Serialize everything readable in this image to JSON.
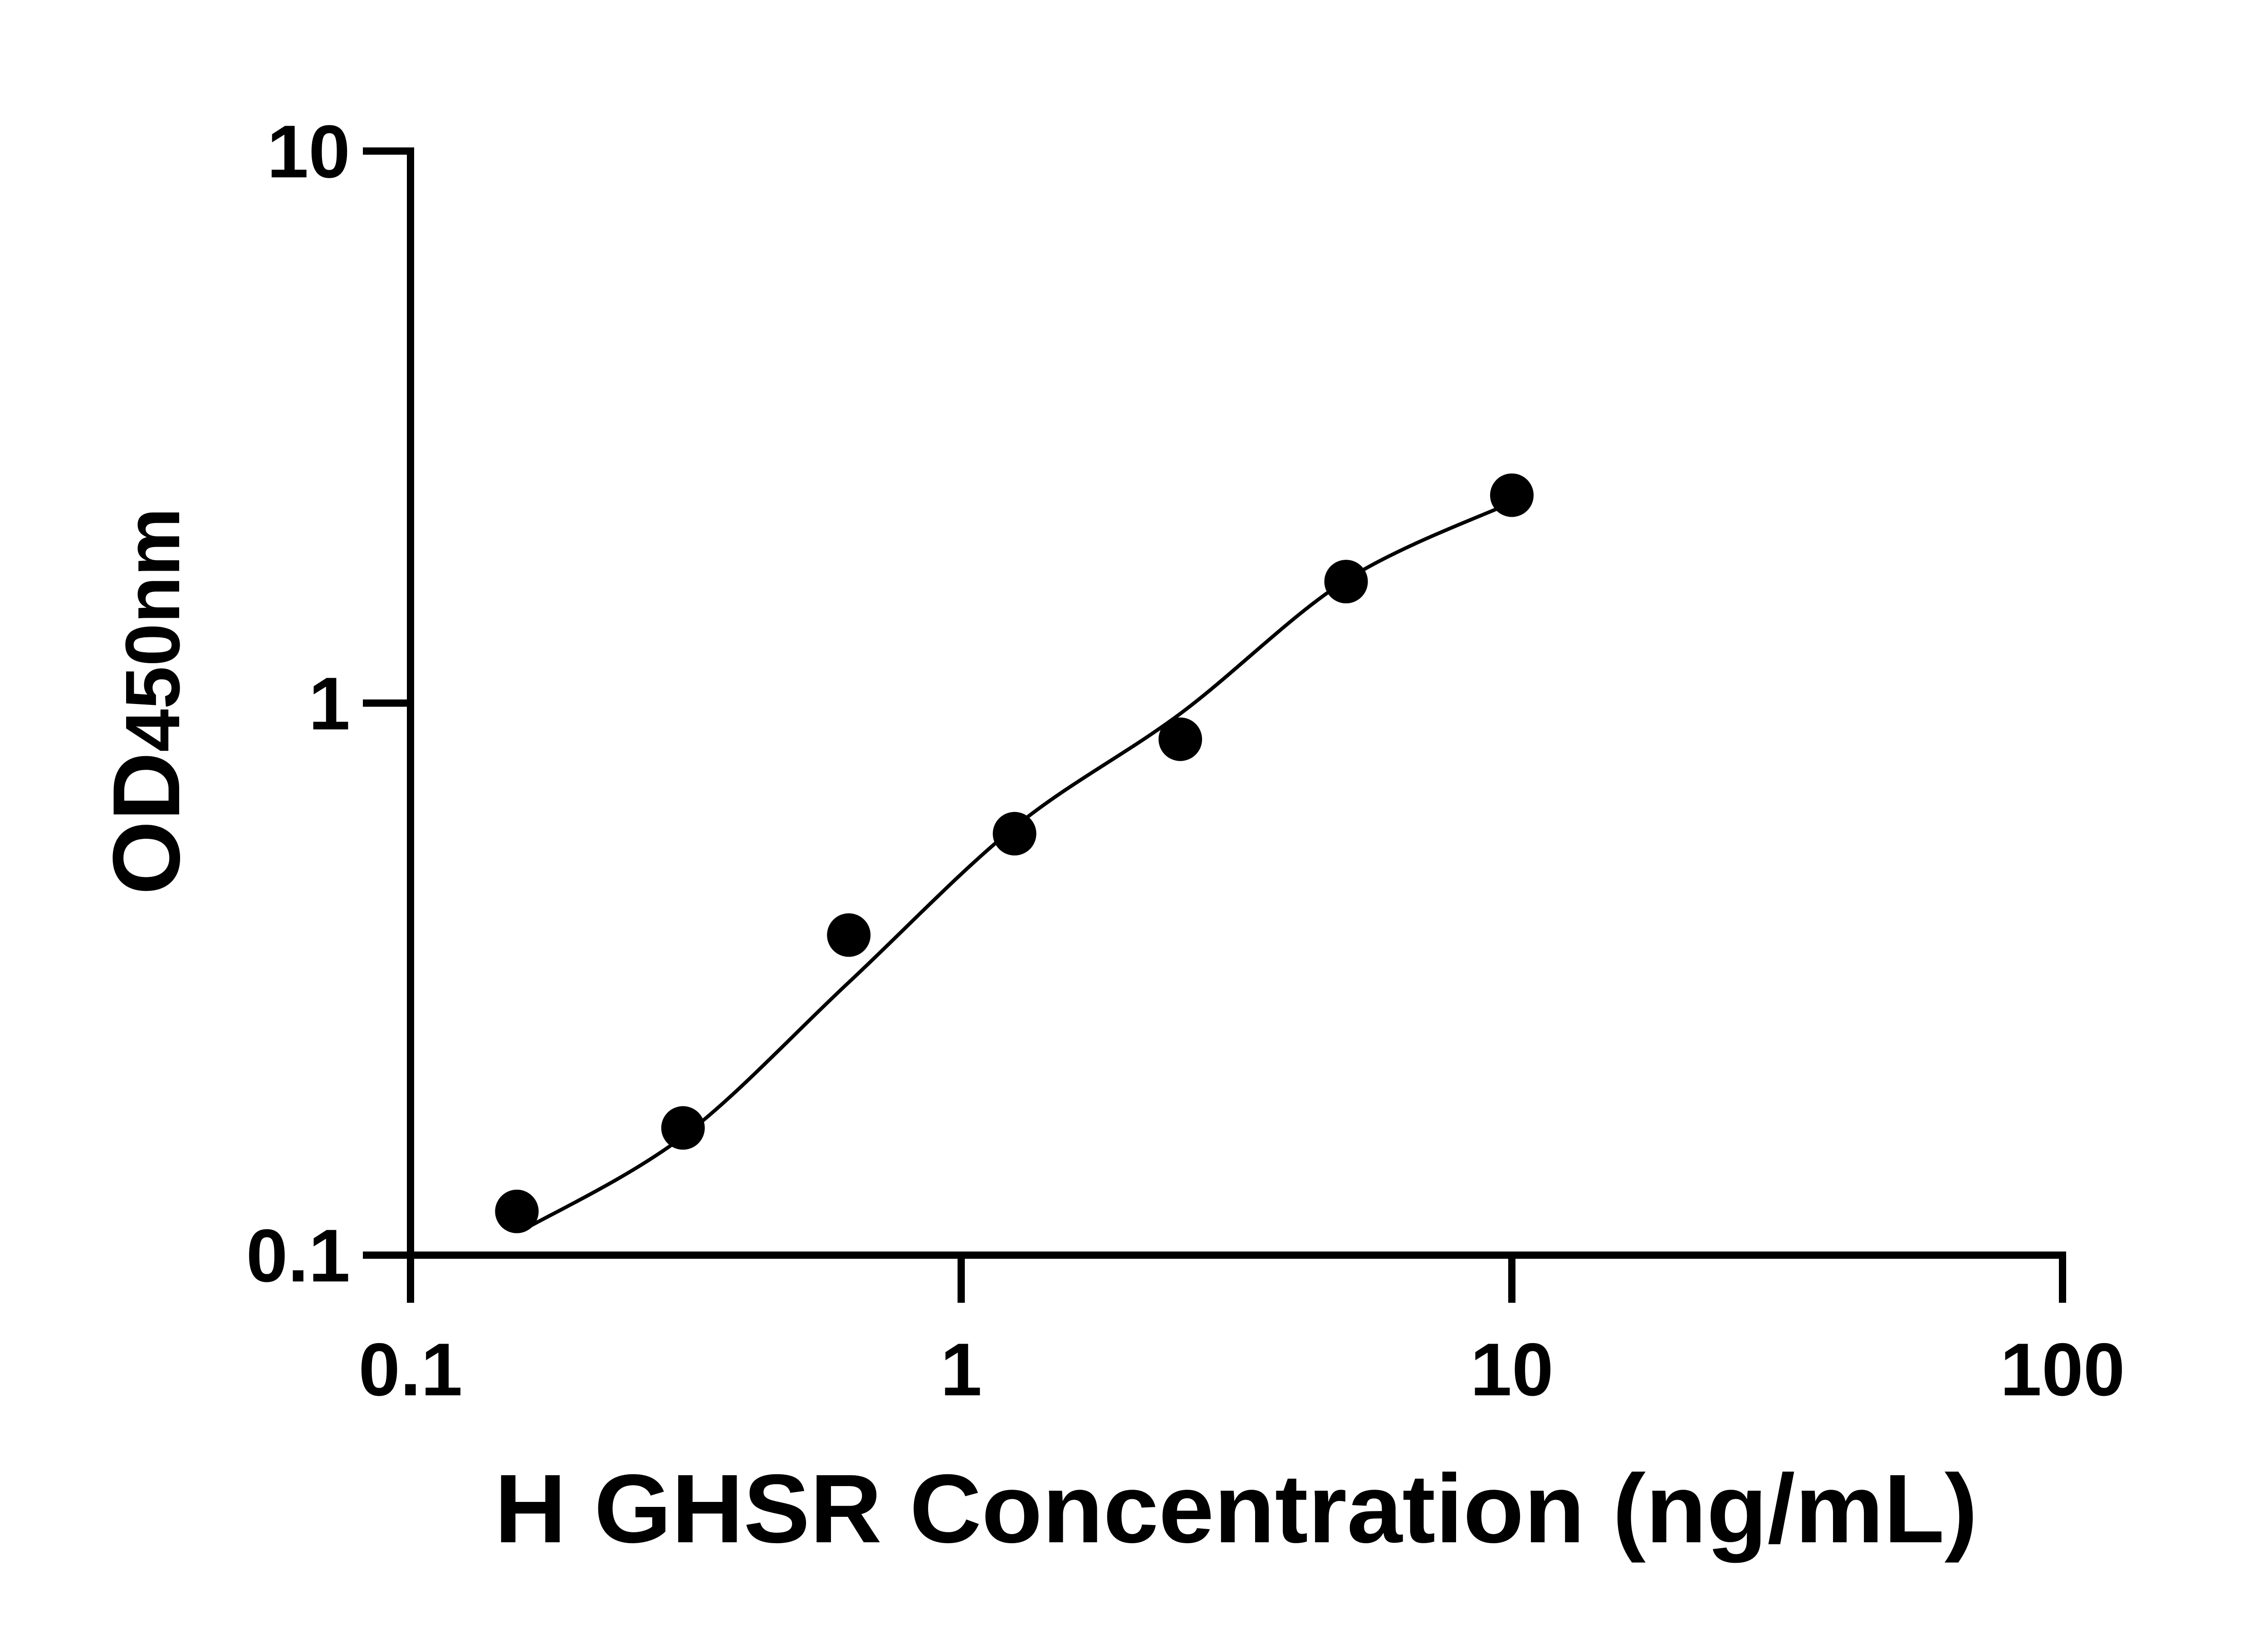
{
  "chart_data": {
    "type": "scatter",
    "title": "",
    "xlabel": "H GHSR Concentration (ng/mL)",
    "ylabel_main": "OD",
    "ylabel_sub": "450nm",
    "x_scale": "log",
    "y_scale": "log",
    "xlim": [
      0.1,
      100
    ],
    "ylim": [
      0.1,
      10
    ],
    "x_ticks": [
      "0.1",
      "1",
      "10",
      "100"
    ],
    "y_ticks": [
      "0.1",
      "1",
      "10"
    ],
    "grid": false,
    "marker_color": "#000000",
    "series": [
      {
        "x": [
          0.156,
          0.3125,
          0.625,
          1.25,
          2.5,
          5,
          10
        ],
        "y": [
          0.12,
          0.17,
          0.38,
          0.58,
          0.86,
          1.66,
          2.38
        ]
      }
    ],
    "fit_curve": {
      "x": [
        0.16,
        0.3125,
        0.625,
        1.25,
        2.5,
        5,
        10
      ],
      "y": [
        0.111,
        0.164,
        0.312,
        0.596,
        0.957,
        1.67,
        2.31
      ]
    }
  }
}
